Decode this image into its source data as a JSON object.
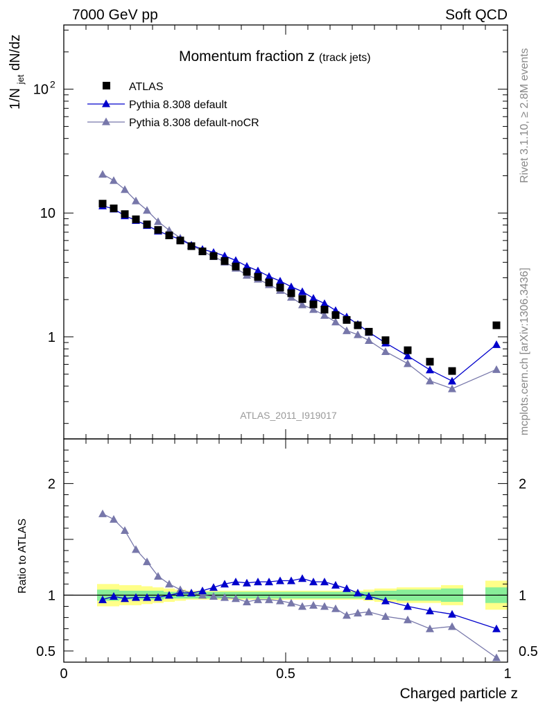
{
  "chart_data": {
    "type": "scatter",
    "header": {
      "left": "7000 GeV pp",
      "right": "Soft QCD"
    },
    "title": {
      "main": "Momentum fraction z",
      "sub": "(track jets)"
    },
    "ylabel_top": {
      "a": "1/N",
      "sub": "jet",
      "b": " dN/dz"
    },
    "ylabel_bottom": "Ratio to ATLAS",
    "xlabel": "Charged particle z",
    "analysis_label": "ATLAS_2011_I919017",
    "side_text_top": "Rivet 3.1.10, ≥ 2.8M events",
    "side_text_bottom": "mcplots.cern.ch [arXiv:1306.3436]",
    "xlim": [
      0,
      1
    ],
    "ylim_top": [
      0.15,
      330
    ],
    "ylim_bottom": [
      0.4,
      2.4
    ],
    "top_y_ticks": [
      {
        "v": 1,
        "label": "1"
      },
      {
        "v": 10,
        "label": "10"
      },
      {
        "v": 100,
        "label": "10",
        "sup": "2"
      }
    ],
    "bottom_y_ticks": [
      {
        "v": 0.5,
        "label": "0.5"
      },
      {
        "v": 1,
        "label": "1"
      },
      {
        "v": 2,
        "label": "2"
      }
    ],
    "x_ticks": [
      {
        "v": 0,
        "label": "0"
      },
      {
        "v": 0.5,
        "label": "0.5"
      },
      {
        "v": 1,
        "label": "1"
      }
    ],
    "legend": [
      {
        "key": "data",
        "label": "ATLAS"
      },
      {
        "key": "mc1",
        "label": "Pythia 8.308 default"
      },
      {
        "key": "mc2",
        "label": "Pythia 8.308 default-noCR"
      }
    ],
    "colors": {
      "data": "#000000",
      "mc1": "#0000cc",
      "mc2": "#7777aa",
      "band_green": "#88ee99",
      "band_yellow": "#ffff88"
    },
    "bins": [
      {
        "lo": 0.075,
        "hi": 0.1
      },
      {
        "lo": 0.1,
        "hi": 0.125
      },
      {
        "lo": 0.125,
        "hi": 0.15
      },
      {
        "lo": 0.15,
        "hi": 0.175
      },
      {
        "lo": 0.175,
        "hi": 0.2
      },
      {
        "lo": 0.2,
        "hi": 0.225
      },
      {
        "lo": 0.225,
        "hi": 0.25
      },
      {
        "lo": 0.25,
        "hi": 0.275
      },
      {
        "lo": 0.275,
        "hi": 0.3
      },
      {
        "lo": 0.3,
        "hi": 0.325
      },
      {
        "lo": 0.325,
        "hi": 0.35
      },
      {
        "lo": 0.35,
        "hi": 0.375
      },
      {
        "lo": 0.375,
        "hi": 0.4
      },
      {
        "lo": 0.4,
        "hi": 0.425
      },
      {
        "lo": 0.425,
        "hi": 0.45
      },
      {
        "lo": 0.45,
        "hi": 0.475
      },
      {
        "lo": 0.475,
        "hi": 0.5
      },
      {
        "lo": 0.5,
        "hi": 0.525
      },
      {
        "lo": 0.525,
        "hi": 0.55
      },
      {
        "lo": 0.55,
        "hi": 0.575
      },
      {
        "lo": 0.575,
        "hi": 0.6
      },
      {
        "lo": 0.6,
        "hi": 0.625
      },
      {
        "lo": 0.625,
        "hi": 0.65
      },
      {
        "lo": 0.65,
        "hi": 0.675
      },
      {
        "lo": 0.675,
        "hi": 0.7
      },
      {
        "lo": 0.7,
        "hi": 0.75
      },
      {
        "lo": 0.75,
        "hi": 0.8
      },
      {
        "lo": 0.8,
        "hi": 0.85
      },
      {
        "lo": 0.85,
        "hi": 0.9
      },
      {
        "lo": 0.95,
        "hi": 1.0
      }
    ],
    "data": {
      "name": "ATLAS",
      "x": [
        0.0875,
        0.1125,
        0.1375,
        0.1625,
        0.1875,
        0.2125,
        0.2375,
        0.2625,
        0.2875,
        0.3125,
        0.3375,
        0.3625,
        0.3875,
        0.4125,
        0.4375,
        0.4625,
        0.4875,
        0.5125,
        0.5375,
        0.5625,
        0.5875,
        0.6125,
        0.6375,
        0.6625,
        0.6875,
        0.725,
        0.775,
        0.825,
        0.875,
        0.975
      ],
      "y": [
        11.9,
        10.9,
        9.8,
        8.9,
        8.1,
        7.3,
        6.6,
        6.0,
        5.4,
        4.9,
        4.5,
        4.1,
        3.7,
        3.35,
        3.05,
        2.75,
        2.5,
        2.25,
        2.02,
        1.83,
        1.66,
        1.5,
        1.37,
        1.24,
        1.1,
        0.94,
        0.78,
        0.63,
        0.53,
        1.24
      ]
    },
    "series": [
      {
        "name": "Pythia 8.308 default",
        "ratio": [
          0.96,
          0.99,
          0.97,
          0.98,
          0.98,
          0.98,
          1.0,
          1.02,
          1.02,
          1.04,
          1.07,
          1.1,
          1.12,
          1.11,
          1.12,
          1.12,
          1.13,
          1.13,
          1.15,
          1.12,
          1.12,
          1.09,
          1.06,
          1.02,
          0.99,
          0.95,
          0.9,
          0.86,
          0.83,
          0.7
        ]
      },
      {
        "name": "Pythia 8.308 default-noCR",
        "ratio": [
          1.73,
          1.68,
          1.58,
          1.41,
          1.3,
          1.17,
          1.1,
          1.05,
          1.02,
          1.0,
          0.99,
          0.98,
          0.97,
          0.94,
          0.96,
          0.96,
          0.95,
          0.93,
          0.9,
          0.91,
          0.9,
          0.88,
          0.82,
          0.84,
          0.85,
          0.81,
          0.78,
          0.7,
          0.72,
          0.44
        ]
      }
    ],
    "bands": {
      "green": [
        0.05,
        0.05,
        0.04,
        0.04,
        0.04,
        0.04,
        0.03,
        0.03,
        0.03,
        0.03,
        0.03,
        0.03,
        0.03,
        0.03,
        0.03,
        0.03,
        0.03,
        0.03,
        0.03,
        0.03,
        0.03,
        0.03,
        0.03,
        0.03,
        0.03,
        0.04,
        0.05,
        0.05,
        0.06,
        0.07
      ],
      "yellow": [
        0.1,
        0.1,
        0.09,
        0.09,
        0.08,
        0.07,
        0.06,
        0.05,
        0.04,
        0.04,
        0.04,
        0.04,
        0.04,
        0.04,
        0.04,
        0.04,
        0.04,
        0.04,
        0.04,
        0.04,
        0.04,
        0.04,
        0.04,
        0.04,
        0.05,
        0.06,
        0.07,
        0.07,
        0.09,
        0.13
      ]
    }
  }
}
